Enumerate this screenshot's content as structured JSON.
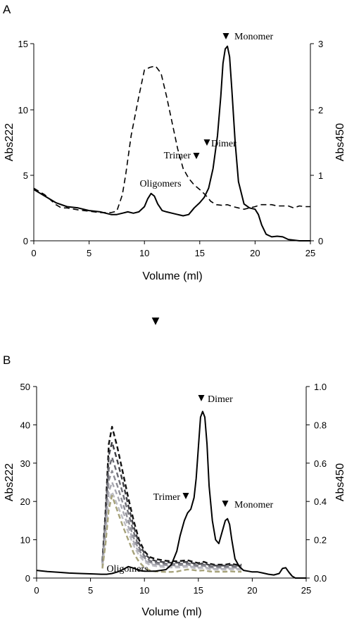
{
  "stray_marker": "▼",
  "panels": [
    {
      "letter": "A",
      "xlabel": "Volume (ml)",
      "ylabel_left": "Abs222",
      "ylabel_right": "Abs450",
      "xticks": [
        "0",
        "5",
        "10",
        "15",
        "20",
        "25"
      ],
      "yticks_left": [
        "0",
        "5",
        "10",
        "15"
      ],
      "yticks_right": [
        "0",
        "1",
        "2",
        "3"
      ],
      "annotations": {
        "monomer": "Monomer",
        "dimer": "Dimer",
        "trimer": "Trimer",
        "oligomers": "Oligomers"
      }
    },
    {
      "letter": "B",
      "xlabel": "Volume (ml)",
      "ylabel_left": "Abs222",
      "ylabel_right": "Abs450",
      "xticks": [
        "0",
        "5",
        "10",
        "15",
        "20",
        "25"
      ],
      "yticks_left": [
        "0",
        "10",
        "20",
        "30",
        "40",
        "50"
      ],
      "yticks_right": [
        "0.0",
        "0.2",
        "0.4",
        "0.6",
        "0.8",
        "1.0"
      ],
      "annotations": {
        "dimer": "Dimer",
        "trimer": "Trimer",
        "monomer": "Monomer",
        "oligomers": "Oligomers"
      }
    }
  ],
  "chart_data": [
    {
      "type": "line",
      "panel": "A",
      "xlabel": "Volume (ml)",
      "ylabel": "Abs222",
      "ylabel_right": "Abs450",
      "xlim": [
        0,
        25
      ],
      "ylim": [
        0,
        15
      ],
      "ylim_right": [
        0,
        3
      ],
      "grid": false,
      "series": [
        {
          "style": "solid",
          "color": "#000000",
          "axis": "left",
          "x": [
            0,
            1,
            2,
            3,
            4,
            5,
            6,
            6.5,
            7,
            7.5,
            8,
            8.5,
            9,
            9.5,
            10,
            10.3,
            10.6,
            10.9,
            11.2,
            11.6,
            12,
            12.5,
            13,
            13.5,
            14,
            14.5,
            15,
            15.4,
            15.8,
            16.2,
            16.6,
            16.9,
            17.1,
            17.3,
            17.5,
            17.7,
            17.9,
            18.2,
            18.5,
            19,
            19.5,
            20,
            20.3,
            20.6,
            21,
            21.5,
            22,
            22.5,
            23,
            24,
            25
          ],
          "y": [
            3.9,
            3.4,
            2.9,
            2.6,
            2.5,
            2.3,
            2.2,
            2.1,
            2.0,
            2.0,
            2.1,
            2.2,
            2.1,
            2.2,
            2.6,
            3.2,
            3.6,
            3.4,
            2.8,
            2.3,
            2.2,
            2.1,
            2.0,
            1.9,
            2.0,
            2.5,
            2.9,
            3.3,
            4.0,
            5.5,
            8.0,
            11.0,
            13.5,
            14.6,
            14.8,
            14.0,
            11.5,
            7.5,
            4.5,
            2.8,
            2.5,
            2.4,
            2.0,
            1.2,
            0.5,
            0.3,
            0.35,
            0.3,
            0.1,
            0,
            0
          ]
        },
        {
          "style": "dashed",
          "color": "#000000",
          "axis": "right",
          "x": [
            0,
            1,
            2,
            2.5,
            3,
            4,
            5,
            6,
            7,
            7.5,
            8,
            8.3,
            8.8,
            9.5,
            10,
            10.5,
            11,
            11.5,
            12,
            12.5,
            13,
            13.5,
            14,
            14.5,
            15,
            15.5,
            16,
            16.5,
            17,
            17.5,
            18,
            18.5,
            19,
            19.5,
            20,
            20.5,
            21,
            21.5,
            22,
            22.5,
            23,
            23.5,
            24,
            24.5,
            25
          ],
          "y": [
            0.8,
            0.7,
            0.55,
            0.5,
            0.5,
            0.47,
            0.45,
            0.43,
            0.43,
            0.45,
            0.7,
            1.0,
            1.6,
            2.2,
            2.6,
            2.64,
            2.66,
            2.55,
            2.2,
            1.8,
            1.4,
            1.1,
            0.95,
            0.85,
            0.78,
            0.7,
            0.6,
            0.55,
            0.54,
            0.55,
            0.52,
            0.5,
            0.48,
            0.5,
            0.52,
            0.55,
            0.55,
            0.55,
            0.53,
            0.53,
            0.53,
            0.5,
            0.53,
            0.52,
            0.52
          ]
        }
      ],
      "annotations": [
        {
          "label": "Monomer",
          "x": 17.4,
          "y": 15.5
        },
        {
          "label": "Dimer",
          "x": 15.5,
          "y": 7.3
        },
        {
          "label": "Trimer",
          "x": 14.8,
          "y": 6.2
        },
        {
          "label": "Oligomers",
          "x": 10.5,
          "y": 4.2
        }
      ]
    },
    {
      "type": "line",
      "panel": "B",
      "xlabel": "Volume (ml)",
      "ylabel": "Abs222",
      "ylabel_right": "Abs450",
      "xlim": [
        0,
        25
      ],
      "ylim": [
        0,
        50
      ],
      "ylim_right": [
        0,
        1.0
      ],
      "grid": false,
      "series": [
        {
          "style": "solid",
          "color": "#000000",
          "axis": "left",
          "x": [
            0,
            1,
            2,
            3,
            4,
            5,
            6,
            6.5,
            7,
            7.5,
            8,
            8.5,
            9,
            9.5,
            10,
            11,
            12,
            12.5,
            13,
            13.3,
            13.7,
            14,
            14.3,
            14.6,
            14.8,
            15,
            15.2,
            15.4,
            15.6,
            15.8,
            16,
            16.3,
            16.6,
            16.9,
            17.2,
            17.5,
            17.7,
            17.9,
            18.1,
            18.4,
            18.8,
            19.2,
            19.6,
            20,
            20.5,
            21,
            21.5,
            22,
            22.5,
            22.8,
            23.1,
            23.4,
            23.7,
            24,
            24.5,
            25
          ],
          "y": [
            2.0,
            1.7,
            1.5,
            1.3,
            1.2,
            1.1,
            1.0,
            1.0,
            1.2,
            1.6,
            2.2,
            3.0,
            2.6,
            2.0,
            1.8,
            1.8,
            2.2,
            3.5,
            7.0,
            11.0,
            15.0,
            17.0,
            18.0,
            21.0,
            26.0,
            34.0,
            42.0,
            43.5,
            42.0,
            35.0,
            24.0,
            15.0,
            10.0,
            9.0,
            12.0,
            15.0,
            15.5,
            14.0,
            10.0,
            5.0,
            3.0,
            2.0,
            1.8,
            1.6,
            1.6,
            1.3,
            1.0,
            0.8,
            1.2,
            2.5,
            2.7,
            1.5,
            0.5,
            0,
            0,
            0
          ]
        },
        {
          "style": "dashed",
          "color": "#111111",
          "axis": "right",
          "x": [
            6.1,
            6.4,
            6.7,
            7.0,
            7.5,
            8.0,
            8.5,
            9.0,
            9.5,
            10.0,
            10.5,
            11.0,
            11.5,
            12.0,
            12.5,
            13.0,
            13.5,
            14.0,
            14.5,
            15.0,
            15.5,
            16.0,
            16.5,
            17.0,
            17.5,
            18.0,
            18.5,
            19.0
          ],
          "y": [
            0.09,
            0.35,
            0.7,
            0.79,
            0.68,
            0.55,
            0.42,
            0.3,
            0.2,
            0.14,
            0.11,
            0.1,
            0.095,
            0.09,
            0.088,
            0.088,
            0.09,
            0.093,
            0.085,
            0.078,
            0.085,
            0.075,
            0.07,
            0.07,
            0.07,
            0.075,
            0.07,
            0.07
          ]
        },
        {
          "style": "dashed",
          "color": "#3f3f44",
          "axis": "right",
          "x": [
            6.1,
            6.4,
            6.7,
            7.0,
            7.5,
            8.0,
            8.5,
            9.0,
            9.5,
            10.0,
            10.5,
            11.0,
            11.5,
            12.0,
            12.5,
            13.0,
            13.5,
            14.0,
            14.5,
            15.0,
            15.5,
            16.0,
            16.5,
            17.0,
            17.5,
            18.0,
            18.5,
            19.0
          ],
          "y": [
            0.08,
            0.32,
            0.64,
            0.71,
            0.61,
            0.5,
            0.38,
            0.27,
            0.18,
            0.13,
            0.1,
            0.09,
            0.085,
            0.082,
            0.08,
            0.08,
            0.082,
            0.085,
            0.078,
            0.072,
            0.078,
            0.068,
            0.065,
            0.065,
            0.065,
            0.068,
            0.065,
            0.065
          ]
        },
        {
          "style": "dashed",
          "color": "#6c6c74",
          "axis": "right",
          "x": [
            6.1,
            6.4,
            6.7,
            7.0,
            7.5,
            8.0,
            8.5,
            9.0,
            9.5,
            10.0,
            10.5,
            11.0,
            11.5,
            12.0,
            12.5,
            13.0,
            13.5,
            14.0,
            14.5,
            15.0,
            15.5,
            16.0,
            16.5,
            17.0,
            17.5,
            18.0,
            18.5,
            19.0
          ],
          "y": [
            0.07,
            0.29,
            0.57,
            0.63,
            0.54,
            0.44,
            0.34,
            0.24,
            0.16,
            0.115,
            0.09,
            0.082,
            0.078,
            0.075,
            0.073,
            0.073,
            0.075,
            0.078,
            0.07,
            0.066,
            0.07,
            0.062,
            0.06,
            0.06,
            0.06,
            0.062,
            0.06,
            0.06
          ]
        },
        {
          "style": "dashed",
          "color": "#8d8d95",
          "axis": "right",
          "x": [
            6.1,
            6.4,
            6.7,
            7.0,
            7.5,
            8.0,
            8.5,
            9.0,
            9.5,
            10.0,
            10.5,
            11.0,
            11.5,
            12.0,
            12.5,
            13.0,
            13.5,
            14.0,
            14.5,
            15.0,
            15.5,
            16.0,
            16.5,
            17.0,
            17.5,
            18.0,
            18.5,
            19.0
          ],
          "y": [
            0.065,
            0.26,
            0.51,
            0.56,
            0.48,
            0.39,
            0.3,
            0.21,
            0.145,
            0.105,
            0.082,
            0.075,
            0.07,
            0.068,
            0.066,
            0.066,
            0.068,
            0.07,
            0.064,
            0.06,
            0.064,
            0.056,
            0.054,
            0.054,
            0.054,
            0.056,
            0.054,
            0.054
          ]
        },
        {
          "style": "dashed",
          "color": "#a9a9b2",
          "axis": "right",
          "x": [
            6.1,
            6.4,
            6.7,
            7.0,
            7.5,
            8.0,
            8.5,
            9.0,
            9.5,
            10.0,
            10.5,
            11.0,
            11.5,
            12.0,
            12.5,
            13.0,
            13.5,
            14.0,
            14.5,
            15.0,
            15.5,
            16.0,
            16.5,
            17.0,
            17.5,
            18.0,
            18.5,
            19.0
          ],
          "y": [
            0.06,
            0.23,
            0.45,
            0.5,
            0.43,
            0.35,
            0.27,
            0.19,
            0.13,
            0.095,
            0.075,
            0.068,
            0.064,
            0.062,
            0.06,
            0.06,
            0.062,
            0.064,
            0.058,
            0.054,
            0.058,
            0.05,
            0.048,
            0.048,
            0.048,
            0.05,
            0.048,
            0.048
          ]
        },
        {
          "style": "dashed",
          "color": "#bdbdc3",
          "axis": "right",
          "x": [
            6.1,
            6.4,
            6.7,
            7.0,
            7.5,
            8.0,
            8.5,
            9.0,
            9.5,
            10.0,
            10.5,
            11.0,
            11.5,
            12.0,
            12.5,
            13.0,
            13.5,
            14.0,
            14.5,
            15.0,
            15.5,
            16.0,
            16.5,
            17.0,
            17.5,
            18.0,
            18.5,
            19.0
          ],
          "y": [
            0.055,
            0.21,
            0.4,
            0.45,
            0.38,
            0.31,
            0.24,
            0.17,
            0.118,
            0.085,
            0.068,
            0.062,
            0.058,
            0.056,
            0.055,
            0.055,
            0.056,
            0.058,
            0.053,
            0.05,
            0.053,
            0.046,
            0.044,
            0.044,
            0.044,
            0.046,
            0.044,
            0.044
          ]
        },
        {
          "style": "dashed",
          "color": "#a6a27a",
          "axis": "right",
          "x": [
            6.1,
            6.4,
            6.7,
            7.0,
            7.5,
            8.0,
            8.5,
            9.0,
            9.5,
            10.0,
            10.5,
            11.0,
            11.5,
            12.0,
            12.5,
            13.0,
            13.5,
            14.0,
            14.5,
            15.0,
            15.5,
            16.0,
            16.5,
            17.0,
            17.5,
            18.0,
            18.5,
            19.0
          ],
          "y": [
            0.05,
            0.18,
            0.36,
            0.43,
            0.35,
            0.27,
            0.2,
            0.13,
            0.085,
            0.055,
            0.04,
            0.035,
            0.033,
            0.032,
            0.032,
            0.034,
            0.04,
            0.045,
            0.042,
            0.038,
            0.04,
            0.035,
            0.033,
            0.033,
            0.033,
            0.035,
            0.033,
            0.033
          ]
        }
      ],
      "annotations": [
        {
          "label": "Dimer",
          "x": 15.3,
          "y": 45.5
        },
        {
          "label": "Trimer",
          "x": 13.9,
          "y": 20.0
        },
        {
          "label": "Monomer",
          "x": 17.5,
          "y": 17.0
        },
        {
          "label": "Oligomers",
          "x": 8.5,
          "y": 2.5
        }
      ]
    }
  ]
}
